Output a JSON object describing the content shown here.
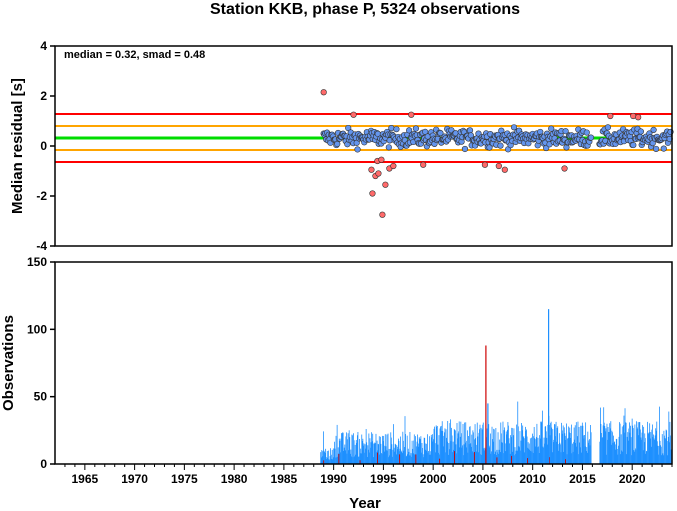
{
  "chart_data": [
    {
      "type": "scatter",
      "title": "Station KKB, phase P, 5324 observations",
      "xlabel": "",
      "ylabel": "Median residual [s]",
      "xlim": [
        1962,
        2024
      ],
      "ylim": [
        -4,
        4
      ],
      "yticks": [
        -4,
        -2,
        0,
        2,
        4
      ],
      "annotation": "median = 0.32, smad = 0.48",
      "reference_lines": [
        {
          "value": 1.28,
          "color": "#ff0000"
        },
        {
          "value": -0.64,
          "color": "#ff0000"
        },
        {
          "value": 0.8,
          "color": "#ffa500"
        },
        {
          "value": -0.16,
          "color": "#ffa500"
        },
        {
          "value": 0.32,
          "color": "#00dd00"
        }
      ],
      "point_colors": {
        "inlier": "#6495ed",
        "outlier": "#ff6a6a",
        "edge": "#333333"
      },
      "outliers": [
        {
          "x": 1989.0,
          "y": 2.15
        },
        {
          "x": 1992.0,
          "y": 1.25
        },
        {
          "x": 1993.8,
          "y": -0.95
        },
        {
          "x": 1993.9,
          "y": -1.9
        },
        {
          "x": 1994.2,
          "y": -1.2
        },
        {
          "x": 1994.5,
          "y": -1.1
        },
        {
          "x": 1994.4,
          "y": -0.6
        },
        {
          "x": 1994.8,
          "y": -0.55
        },
        {
          "x": 1994.9,
          "y": -2.75
        },
        {
          "x": 1995.2,
          "y": -1.55
        },
        {
          "x": 1995.6,
          "y": -0.9
        },
        {
          "x": 1996.0,
          "y": -0.8
        },
        {
          "x": 1997.8,
          "y": 1.25
        },
        {
          "x": 1999.0,
          "y": -0.75
        },
        {
          "x": 2005.2,
          "y": -0.75
        },
        {
          "x": 2006.6,
          "y": -0.8
        },
        {
          "x": 2007.2,
          "y": -0.95
        },
        {
          "x": 2013.2,
          "y": -0.9
        },
        {
          "x": 2017.8,
          "y": 1.2
        },
        {
          "x": 2020.1,
          "y": 1.2
        },
        {
          "x": 2020.6,
          "y": 1.15
        }
      ]
    },
    {
      "type": "bar",
      "xlabel": "Year",
      "ylabel": "Observations",
      "xlim": [
        1962,
        2024
      ],
      "ylim": [
        0,
        150
      ],
      "yticks": [
        0,
        50,
        100,
        150
      ],
      "xticks": [
        1965,
        1970,
        1975,
        1980,
        1985,
        1990,
        1995,
        2000,
        2005,
        2010,
        2015,
        2020
      ],
      "series_colors": {
        "blue": "#1e90ff",
        "red": "#cc0000"
      },
      "notable_bars": [
        {
          "x": 2005.3,
          "value": 88,
          "color": "#cc0000"
        },
        {
          "x": 2005.5,
          "value": 45,
          "color": "#1e90ff"
        },
        {
          "x": 2011.6,
          "value": 115,
          "color": "#1e90ff"
        }
      ]
    }
  ]
}
